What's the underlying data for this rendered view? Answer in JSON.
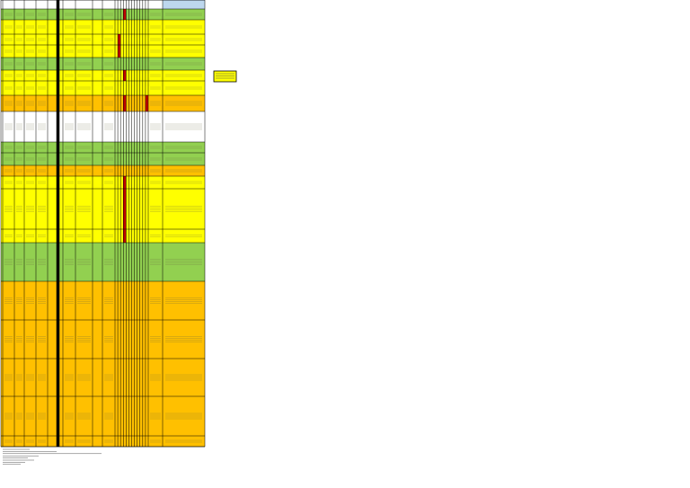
{
  "sheet": {
    "header_fill": "#ffffff",
    "comment_header_fill": "#bdd7ee",
    "rows": [
      {
        "fill": "#92d050",
        "flags": [
          3
        ]
      },
      {
        "fill": "#ffff00",
        "flags": []
      },
      {
        "fill": "#ffff00",
        "flags": [
          1
        ]
      },
      {
        "fill": "#ffff00",
        "flags": [
          1
        ]
      },
      {
        "fill": "#92d050",
        "flags": []
      },
      {
        "fill": "#ffff00",
        "flags": [
          3
        ]
      },
      {
        "fill": "#ffff00",
        "flags": []
      },
      {
        "fill": "#ffc000",
        "flags": [
          3,
          11
        ]
      },
      {
        "fill": "#ffffff",
        "flags": []
      },
      {
        "fill": "#92d050",
        "flags": []
      },
      {
        "fill": "#92d050",
        "flags": []
      },
      {
        "fill": "#ffc000",
        "flags": []
      },
      {
        "fill": "#ffff00",
        "flags": [
          3
        ]
      },
      {
        "fill": "#ffff00",
        "flags": [
          3
        ]
      },
      {
        "fill": "#ffff00",
        "flags": [
          3
        ]
      },
      {
        "fill": "#92d050",
        "flags": []
      },
      {
        "fill": "#ffc000",
        "flags": []
      },
      {
        "fill": "#ffc000",
        "flags": []
      },
      {
        "fill": "#ffc000",
        "flags": []
      },
      {
        "fill": "#ffc000",
        "flags": []
      },
      {
        "fill": "#ffc000",
        "flags": []
      }
    ],
    "flag_fill": "#c00000",
    "note_fill": "#ffff00"
  }
}
